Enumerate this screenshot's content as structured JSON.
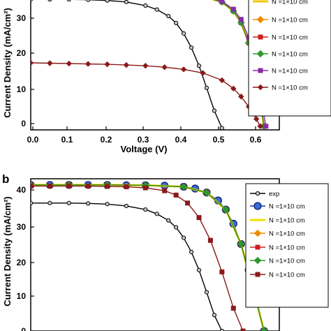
{
  "chart_data": [
    {
      "panel_label": "",
      "type": "line",
      "xlabel": "Voltage (V)",
      "ylabel": "Current Density (mA/cm²)",
      "xlim": [
        0.0,
        0.65
      ],
      "ylim": [
        -1,
        36
      ],
      "xticks": [
        "0.0",
        "0.1",
        "0.2",
        "0.3",
        "0.4",
        "0.5",
        "0.6"
      ],
      "yticks": [
        "0",
        "10",
        "20",
        "30"
      ],
      "legend_placement": "right",
      "series": [
        {
          "name": "",
          "legend_label": "",
          "color": "#000000",
          "marker": "circle-small",
          "x": [
            0,
            0.05,
            0.1,
            0.15,
            0.2,
            0.25,
            0.3,
            0.33,
            0.36,
            0.38,
            0.4,
            0.42,
            0.44,
            0.46,
            0.48,
            0.5
          ],
          "y": [
            35,
            35,
            35,
            34.9,
            34.7,
            34.3,
            33.3,
            32.2,
            30.4,
            28.5,
            25.6,
            21.7,
            16.7,
            10.6,
            4.3,
            -0.5
          ]
        },
        {
          "name": "N_t,a=1×10^13 cm^-3",
          "legend_label": "N  =1×10  cm",
          "color": "#f0c800",
          "marker": "none",
          "x": [
            0.4,
            0.45,
            0.5,
            0.53,
            0.55,
            0.57,
            0.59,
            0.6,
            0.61
          ],
          "y": [
            36,
            35.8,
            34.3,
            31.8,
            28.6,
            23,
            14,
            7,
            0
          ]
        },
        {
          "name": "N_t,a=1×10^14 cm^-3",
          "legend_label": "N  =1×10  cm",
          "color": "#f08a00",
          "marker": "diamond",
          "x": [
            0.4,
            0.45,
            0.5,
            0.53,
            0.55,
            0.57,
            0.59,
            0.6,
            0.61
          ],
          "y": [
            36,
            35.8,
            34.3,
            31.8,
            28.6,
            23,
            14,
            7,
            0
          ]
        },
        {
          "name": "N_t,a=1×10^15 cm^-3",
          "legend_label": "N  =1×10  cm",
          "color": "#cc2020",
          "marker": "square",
          "x": [
            0.4,
            0.45,
            0.5,
            0.53,
            0.55,
            0.57,
            0.59,
            0.6,
            0.61
          ],
          "y": [
            36,
            35.8,
            34.3,
            31.8,
            28.6,
            23,
            14,
            7,
            0
          ]
        },
        {
          "name": "N_t,a=1×10^16 cm^-3",
          "legend_label": "N  =1×10  cm",
          "color": "#2a9a2a",
          "marker": "diamond",
          "x": [
            0.4,
            0.45,
            0.5,
            0.53,
            0.55,
            0.57,
            0.59,
            0.6,
            0.61
          ],
          "y": [
            36,
            35.8,
            34.3,
            31.8,
            28.6,
            23,
            14,
            7,
            0
          ]
        },
        {
          "name": "N_t,a=1×10^17 cm^-3",
          "legend_label": "N  =1×10  cm",
          "color": "#8a2aa8",
          "marker": "square",
          "x": [
            0.4,
            0.45,
            0.5,
            0.53,
            0.55,
            0.57,
            0.59,
            0.6,
            0.615
          ],
          "y": [
            36,
            35.8,
            34.5,
            32.3,
            29.5,
            24.5,
            16,
            9,
            0
          ]
        },
        {
          "name": "N_t,a=1×10^18 cm^-3",
          "legend_label": "N  =1×10  cm",
          "color": "#8b1a1a",
          "marker": "diamond-small",
          "x": [
            0,
            0.05,
            0.1,
            0.15,
            0.2,
            0.25,
            0.3,
            0.35,
            0.4,
            0.45,
            0.5,
            0.53,
            0.55,
            0.57,
            0.59,
            0.6
          ],
          "y": [
            17.5,
            17.4,
            17.3,
            17.2,
            17.1,
            16.9,
            16.7,
            16.3,
            15.7,
            14.7,
            12.7,
            10.4,
            8.2,
            5.4,
            2,
            0
          ]
        }
      ]
    },
    {
      "panel_label": "b",
      "type": "line",
      "xlabel": "",
      "ylabel": "Current Density (mA/cm²)",
      "xlim": [
        0.0,
        0.65
      ],
      "ylim": [
        0,
        42
      ],
      "yticks": [
        "0",
        "10",
        "20",
        "30",
        "40"
      ],
      "legend_placement": "right",
      "series": [
        {
          "name": "exp",
          "legend_label": "exp",
          "color": "#000000",
          "marker": "circle-small",
          "x": [
            0,
            0.05,
            0.1,
            0.15,
            0.2,
            0.25,
            0.3,
            0.33,
            0.36,
            0.38,
            0.4,
            0.42,
            0.44,
            0.46,
            0.48,
            0.5
          ],
          "y": [
            35.3,
            35.3,
            35.3,
            35.2,
            35,
            34.5,
            33.5,
            32.3,
            30.5,
            28.6,
            25.7,
            21.8,
            16.8,
            10.7,
            4.4,
            0
          ]
        },
        {
          "name": "N_t,a=1×10^12 cm^-3",
          "legend_label": "N  =1×10  cm",
          "color": "#1a3aa8",
          "marker": "circle-large",
          "x": [
            0,
            0.05,
            0.1,
            0.15,
            0.2,
            0.25,
            0.3,
            0.35,
            0.4,
            0.43,
            0.46,
            0.49,
            0.51,
            0.53,
            0.55,
            0.57,
            0.59,
            0.61
          ],
          "y": [
            40.3,
            40.3,
            40.3,
            40.3,
            40.3,
            40.2,
            40.2,
            40.1,
            39.8,
            39.3,
            38.2,
            36,
            33.5,
            29.6,
            24,
            16.8,
            8.2,
            0
          ]
        },
        {
          "name": "N_t,a=1×10^13 cm^-3",
          "legend_label": "N  =1×10  cm",
          "color": "#f0e000",
          "marker": "none",
          "x": [
            0,
            0.1,
            0.2,
            0.3,
            0.4,
            0.46,
            0.51,
            0.55,
            0.59,
            0.61
          ],
          "y": [
            40.3,
            40.3,
            40.3,
            40.2,
            39.8,
            38.2,
            33.5,
            24,
            8.2,
            0
          ]
        },
        {
          "name": "N_t,a=1×10^14 cm^-3",
          "legend_label": "N  =1×10  cm",
          "color": "#f08a00",
          "marker": "diamond",
          "x": [
            0,
            0.1,
            0.2,
            0.3,
            0.4,
            0.46,
            0.51,
            0.55,
            0.59,
            0.61
          ],
          "y": [
            40.3,
            40.3,
            40.3,
            40.2,
            39.8,
            38.2,
            33.5,
            24,
            8.2,
            0
          ]
        },
        {
          "name": "N_t,a=1×10^15 cm^-3",
          "legend_label": "N  =1×10  cm",
          "color": "#cc2020",
          "marker": "square",
          "x": [
            0,
            0.1,
            0.2,
            0.3,
            0.4,
            0.46,
            0.51,
            0.55,
            0.59,
            0.61
          ],
          "y": [
            40.3,
            40.3,
            40.3,
            40.2,
            39.8,
            38.2,
            33.5,
            24,
            8.2,
            0
          ]
        },
        {
          "name": "N_t,a=1×10^16 cm^-3",
          "legend_label": "N  =1×10  cm",
          "color": "#2a9a2a",
          "marker": "diamond",
          "x": [
            0,
            0.1,
            0.2,
            0.3,
            0.4,
            0.46,
            0.51,
            0.55,
            0.59,
            0.61
          ],
          "y": [
            40.3,
            40.3,
            40.3,
            40.2,
            39.8,
            38.2,
            33.5,
            24,
            8.2,
            0
          ]
        },
        {
          "name": "N_t,a=1×10^17 cm^-3",
          "legend_label": "N  =1×10  cm",
          "color": "#8b1a1a",
          "marker": "square",
          "x": [
            0,
            0.05,
            0.1,
            0.15,
            0.2,
            0.25,
            0.3,
            0.35,
            0.38,
            0.41,
            0.44,
            0.47,
            0.5,
            0.53,
            0.555
          ],
          "y": [
            40,
            40,
            40,
            40,
            39.9,
            39.8,
            39.5,
            38.7,
            37.5,
            35.3,
            31.3,
            25,
            16.3,
            6.3,
            0
          ]
        }
      ]
    }
  ]
}
